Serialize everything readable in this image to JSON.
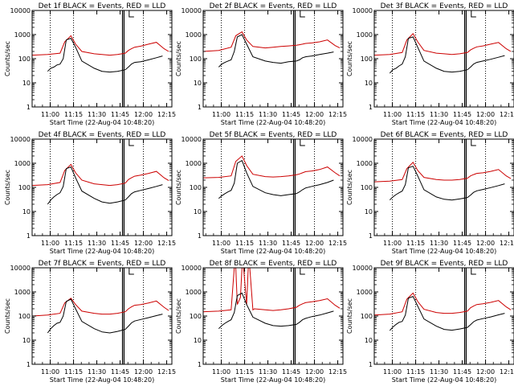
{
  "chart_data": [
    {
      "type": "line",
      "title": "Det 1f BLACK = Events, RED = LLD",
      "xlabel": "Start Time (22-Aug-04 10:48:20)",
      "ylabel": "Counts/sec",
      "y_scale": "log",
      "ylim": [
        1,
        10000
      ],
      "y_ticks": [
        1,
        10,
        100,
        1000,
        10000
      ],
      "x_ticks": [
        "11:00",
        "11:15",
        "11:30",
        "11:45",
        "12:00",
        "12:15"
      ],
      "series": [
        {
          "color": "#cc0000",
          "x_minutes": [
            0,
            10,
            18,
            21,
            25,
            28,
            32,
            40,
            45,
            50,
            55,
            60,
            62,
            64,
            66,
            70,
            75,
            80,
            85,
            88
          ],
          "values": [
            140,
            150,
            170,
            500,
            900,
            400,
            200,
            160,
            150,
            140,
            150,
            170,
            220,
            260,
            300,
            330,
            400,
            480,
            260,
            200
          ]
        },
        {
          "color": "#000000",
          "x_minutes": [
            10,
            12,
            14,
            16,
            18,
            20,
            22,
            25,
            28,
            32,
            40,
            45,
            50,
            55,
            60,
            62,
            64,
            66,
            70,
            75,
            80,
            84
          ],
          "values": [
            30,
            40,
            45,
            55,
            60,
            100,
            600,
            700,
            300,
            80,
            40,
            30,
            28,
            30,
            35,
            45,
            60,
            70,
            75,
            90,
            110,
            130
          ]
        }
      ]
    },
    {
      "type": "line",
      "title": "Det 2f BLACK = Events, RED = LLD",
      "xlabel": "Start Time (22-Aug-04 10:48:20)",
      "ylabel": "Counts/sec",
      "y_scale": "log",
      "ylim": [
        1,
        10000
      ],
      "y_ticks": [
        1,
        10,
        100,
        1000,
        10000
      ],
      "x_ticks": [
        "11:00",
        "11:15",
        "11:30",
        "11:45",
        "12:00",
        "12:15"
      ],
      "series": [
        {
          "color": "#cc0000",
          "x_minutes": [
            0,
            10,
            18,
            21,
            25,
            28,
            32,
            40,
            45,
            50,
            55,
            60,
            62,
            64,
            66,
            70,
            75,
            80,
            85,
            88
          ],
          "values": [
            200,
            220,
            300,
            900,
            1300,
            600,
            320,
            280,
            300,
            320,
            340,
            360,
            380,
            400,
            430,
            450,
            500,
            600,
            350,
            280
          ]
        },
        {
          "color": "#000000",
          "x_minutes": [
            10,
            12,
            14,
            16,
            18,
            20,
            22,
            25,
            28,
            32,
            40,
            45,
            50,
            55,
            60,
            62,
            64,
            66,
            70,
            75,
            80,
            84
          ],
          "values": [
            45,
            60,
            70,
            80,
            90,
            200,
            800,
            1000,
            400,
            120,
            80,
            70,
            65,
            75,
            80,
            90,
            110,
            120,
            130,
            150,
            170,
            190
          ]
        }
      ]
    },
    {
      "type": "line",
      "title": "Det 3f BLACK = Events, RED = LLD",
      "xlabel": "Start Time (22-Aug-04 10:48:20)",
      "ylabel": "Counts/sec",
      "y_scale": "log",
      "ylim": [
        1,
        10000
      ],
      "y_ticks": [
        1,
        10,
        100,
        1000,
        10000
      ],
      "x_ticks": [
        "11:00",
        "11:15",
        "11:30",
        "11:45",
        "12:00",
        "12:15"
      ],
      "series": [
        {
          "color": "#cc0000",
          "x_minutes": [
            0,
            10,
            18,
            21,
            25,
            28,
            32,
            40,
            45,
            50,
            55,
            60,
            62,
            64,
            66,
            70,
            75,
            80,
            85,
            88
          ],
          "values": [
            140,
            150,
            180,
            600,
            1100,
            500,
            220,
            170,
            160,
            150,
            160,
            180,
            230,
            270,
            310,
            340,
            400,
            470,
            260,
            200
          ]
        },
        {
          "color": "#000000",
          "x_minutes": [
            10,
            12,
            14,
            16,
            18,
            20,
            22,
            25,
            28,
            32,
            40,
            45,
            50,
            55,
            60,
            62,
            64,
            66,
            70,
            75,
            80,
            84
          ],
          "values": [
            25,
            35,
            40,
            50,
            60,
            120,
            700,
            800,
            300,
            80,
            40,
            30,
            28,
            30,
            35,
            45,
            60,
            70,
            80,
            95,
            115,
            135
          ]
        }
      ]
    },
    {
      "type": "line",
      "title": "Det 4f BLACK = Events, RED = LLD",
      "xlabel": "Start Time (22-Aug-04 10:48:20)",
      "ylabel": "Counts/sec",
      "y_scale": "log",
      "ylim": [
        1,
        10000
      ],
      "y_ticks": [
        1,
        10,
        100,
        1000,
        10000
      ],
      "x_ticks": [
        "11:00",
        "11:15",
        "11:30",
        "11:45",
        "12:00",
        "12:15"
      ],
      "series": [
        {
          "color": "#cc0000",
          "x_minutes": [
            0,
            10,
            18,
            21,
            25,
            28,
            32,
            40,
            45,
            50,
            55,
            60,
            62,
            64,
            66,
            70,
            75,
            80,
            85,
            88
          ],
          "values": [
            120,
            130,
            160,
            500,
            900,
            400,
            200,
            140,
            130,
            120,
            130,
            150,
            210,
            250,
            290,
            320,
            380,
            460,
            250,
            190
          ]
        },
        {
          "color": "#000000",
          "x_minutes": [
            10,
            12,
            14,
            16,
            18,
            20,
            22,
            25,
            28,
            32,
            40,
            45,
            50,
            55,
            60,
            62,
            64,
            66,
            70,
            75,
            80,
            84
          ],
          "values": [
            20,
            30,
            40,
            50,
            60,
            110,
            600,
            700,
            250,
            70,
            35,
            25,
            22,
            25,
            30,
            40,
            55,
            65,
            75,
            90,
            110,
            130
          ]
        }
      ]
    },
    {
      "type": "line",
      "title": "Det 5f BLACK = Events, RED = LLD",
      "xlabel": "Start Time (22-Aug-04 10:48:20)",
      "ylabel": "Counts/sec",
      "y_scale": "log",
      "ylim": [
        1,
        10000
      ],
      "y_ticks": [
        1,
        10,
        100,
        1000,
        10000
      ],
      "x_ticks": [
        "11:00",
        "11:15",
        "11:30",
        "11:45",
        "12:00",
        "12:15"
      ],
      "series": [
        {
          "color": "#cc0000",
          "x_minutes": [
            0,
            10,
            18,
            21,
            25,
            28,
            32,
            40,
            45,
            50,
            55,
            60,
            62,
            64,
            66,
            70,
            75,
            80,
            85,
            88
          ],
          "values": [
            250,
            260,
            300,
            1200,
            2000,
            800,
            350,
            280,
            270,
            280,
            300,
            330,
            360,
            400,
            450,
            480,
            550,
            700,
            400,
            300
          ]
        },
        {
          "color": "#000000",
          "x_minutes": [
            10,
            12,
            14,
            16,
            18,
            20,
            22,
            25,
            28,
            32,
            40,
            45,
            50,
            55,
            60,
            62,
            64,
            66,
            70,
            75,
            80,
            84
          ],
          "values": [
            35,
            45,
            55,
            65,
            75,
            150,
            1000,
            1300,
            400,
            110,
            60,
            50,
            45,
            50,
            55,
            65,
            80,
            95,
            110,
            130,
            160,
            200
          ]
        }
      ]
    },
    {
      "type": "line",
      "title": "Det 6f BLACK = Events, RED = LLD",
      "xlabel": "Start Time (22-Aug-04 10:48:20)",
      "ylabel": "Counts/sec",
      "y_scale": "log",
      "ylim": [
        1,
        10000
      ],
      "y_ticks": [
        1,
        10,
        100,
        1000,
        10000
      ],
      "x_ticks": [
        "11:00",
        "11:15",
        "11:30",
        "11:45",
        "12:00",
        "12:15"
      ],
      "series": [
        {
          "color": "#cc0000",
          "x_minutes": [
            0,
            10,
            18,
            21,
            25,
            28,
            32,
            40,
            45,
            50,
            55,
            60,
            62,
            64,
            66,
            70,
            75,
            80,
            85,
            88
          ],
          "values": [
            170,
            180,
            210,
            600,
            1100,
            500,
            260,
            210,
            200,
            200,
            210,
            240,
            300,
            340,
            380,
            400,
            460,
            550,
            300,
            230
          ]
        },
        {
          "color": "#000000",
          "x_minutes": [
            10,
            12,
            14,
            16,
            18,
            20,
            22,
            25,
            28,
            32,
            40,
            45,
            50,
            55,
            60,
            62,
            64,
            66,
            70,
            75,
            80,
            84
          ],
          "values": [
            30,
            40,
            50,
            60,
            70,
            130,
            650,
            750,
            300,
            80,
            40,
            32,
            30,
            33,
            38,
            48,
            62,
            72,
            82,
            98,
            118,
            140
          ]
        }
      ]
    },
    {
      "type": "line",
      "title": "Det 7f BLACK = Events, RED = LLD",
      "xlabel": "Start Time (22-Aug-04 10:48:20)",
      "ylabel": "Counts/sec",
      "y_scale": "log",
      "ylim": [
        1,
        10000
      ],
      "y_ticks": [
        1,
        10,
        100,
        1000,
        10000
      ],
      "x_ticks": [
        "11:00",
        "11:15",
        "11:30",
        "11:45",
        "12:00",
        "12:15"
      ],
      "series": [
        {
          "color": "#cc0000",
          "x_minutes": [
            0,
            10,
            18,
            21,
            25,
            28,
            32,
            40,
            45,
            50,
            55,
            60,
            62,
            64,
            66,
            70,
            75,
            80,
            85,
            88
          ],
          "values": [
            100,
            110,
            130,
            350,
            550,
            300,
            160,
            130,
            120,
            120,
            130,
            150,
            200,
            240,
            280,
            300,
            350,
            420,
            230,
            170
          ]
        },
        {
          "color": "#000000",
          "x_minutes": [
            10,
            12,
            14,
            16,
            18,
            20,
            22,
            25,
            28,
            32,
            40,
            45,
            50,
            55,
            60,
            62,
            64,
            66,
            70,
            75,
            80,
            84
          ],
          "values": [
            20,
            30,
            40,
            50,
            55,
            100,
            400,
            500,
            200,
            60,
            30,
            22,
            20,
            23,
            28,
            38,
            52,
            62,
            72,
            86,
            104,
            120
          ]
        }
      ]
    },
    {
      "type": "line",
      "title": "Det 8f BLACK = Events, RED = LLD",
      "xlabel": "Start Time (22-Aug-04 10:48:20)",
      "ylabel": "Counts/sec",
      "y_scale": "log",
      "ylim": [
        1,
        10000
      ],
      "y_ticks": [
        1,
        10,
        100,
        1000,
        10000
      ],
      "x_ticks": [
        "11:00",
        "11:15",
        "11:30",
        "11:45",
        "12:00",
        "12:15"
      ],
      "series": [
        {
          "color": "#cc0000",
          "x_minutes": [
            0,
            10,
            18,
            20,
            21,
            22,
            24,
            25,
            26,
            28,
            29,
            30,
            32,
            33,
            40,
            45,
            50,
            55,
            60,
            62,
            64,
            66,
            70,
            75,
            80,
            85,
            88
          ],
          "values": [
            150,
            160,
            180,
            10000,
            10000,
            300,
            600,
            10000,
            10000,
            300,
            10000,
            10000,
            180,
            200,
            180,
            170,
            180,
            200,
            230,
            280,
            320,
            360,
            390,
            440,
            520,
            280,
            210
          ]
        },
        {
          "color": "#000000",
          "x_minutes": [
            10,
            12,
            14,
            16,
            18,
            20,
            22,
            25,
            28,
            32,
            40,
            45,
            50,
            55,
            60,
            62,
            64,
            66,
            70,
            75,
            80,
            84
          ],
          "values": [
            30,
            40,
            50,
            60,
            70,
            140,
            700,
            900,
            300,
            90,
            50,
            40,
            38,
            40,
            45,
            55,
            70,
            80,
            95,
            110,
            135,
            160
          ]
        }
      ]
    },
    {
      "type": "line",
      "title": "Det 9f BLACK = Events, RED = LLD",
      "xlabel": "Start Time (22-Aug-04 10:48:20)",
      "ylabel": "Counts/sec",
      "y_scale": "log",
      "ylim": [
        1,
        10000
      ],
      "y_ticks": [
        1,
        10,
        100,
        1000,
        10000
      ],
      "x_ticks": [
        "11:00",
        "11:15",
        "11:30",
        "11:45",
        "12:00",
        "12:15"
      ],
      "series": [
        {
          "color": "#cc0000",
          "x_minutes": [
            0,
            10,
            18,
            21,
            25,
            28,
            32,
            40,
            45,
            50,
            55,
            60,
            62,
            64,
            66,
            70,
            75,
            80,
            85,
            88
          ],
          "values": [
            110,
            120,
            150,
            500,
            900,
            400,
            190,
            140,
            130,
            130,
            140,
            160,
            220,
            260,
            300,
            320,
            370,
            440,
            240,
            180
          ]
        },
        {
          "color": "#000000",
          "x_minutes": [
            10,
            12,
            14,
            16,
            18,
            20,
            22,
            25,
            28,
            32,
            40,
            45,
            50,
            55,
            60,
            62,
            64,
            66,
            70,
            75,
            80,
            84
          ],
          "values": [
            25,
            35,
            45,
            55,
            60,
            110,
            550,
            650,
            260,
            75,
            38,
            28,
            26,
            29,
            34,
            44,
            58,
            68,
            78,
            92,
            112,
            130
          ]
        }
      ]
    }
  ]
}
